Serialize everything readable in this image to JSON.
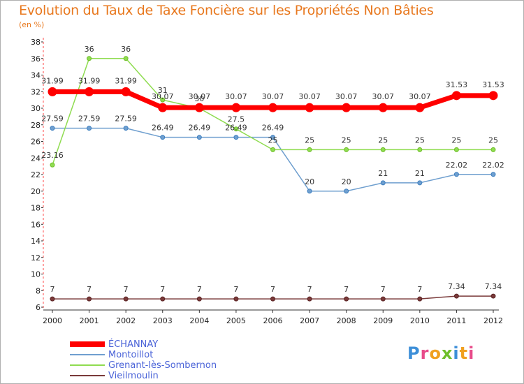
{
  "header": {
    "title": "Evolution du Taux de Taxe Foncière sur les Propriétés Non Bâties",
    "subtitle": "(en %)"
  },
  "chart_data": {
    "type": "line",
    "title": "Evolution du Taux de Taxe Foncière sur les Propriétés Non Bâties",
    "ylabel": "(en %)",
    "xlabel": "",
    "categories": [
      "2000",
      "2001",
      "2002",
      "2003",
      "2004",
      "2005",
      "2006",
      "2007",
      "2008",
      "2009",
      "2010",
      "2011",
      "2012"
    ],
    "ylim": [
      6,
      38
    ],
    "yticks": [
      6,
      8,
      10,
      12,
      14,
      16,
      18,
      20,
      22,
      24,
      26,
      28,
      30,
      32,
      34,
      36,
      38
    ],
    "grid": false,
    "legend_position": "bottom-left",
    "series": [
      {
        "name": "ÉCHANNAY",
        "color": "#ff0000",
        "values": [
          31.99,
          31.99,
          31.99,
          30.07,
          30.07,
          30.07,
          30.07,
          30.07,
          30.07,
          30.07,
          30.07,
          31.53,
          31.53
        ],
        "labels": [
          "31.99",
          "31.99",
          "31.99",
          "30.07",
          "30.07",
          "30.07",
          "30.07",
          "30.07",
          "30.07",
          "30.07",
          "30.07",
          "31.53",
          "31.53"
        ]
      },
      {
        "name": "Montoillot",
        "color": "#6f9fcf",
        "values": [
          27.59,
          27.59,
          27.59,
          26.49,
          26.49,
          26.49,
          26.49,
          20,
          20,
          21,
          21,
          22.02,
          22.02
        ],
        "labels": [
          "27.59",
          "27.59",
          "27.59",
          "26.49",
          "26.49",
          "26.49",
          "26.49",
          "20",
          "20",
          "21",
          "21",
          "22.02",
          "22.02"
        ]
      },
      {
        "name": "Grenant-lès-Sombernon",
        "color": "#8fdc50",
        "values": [
          23.16,
          36,
          36,
          31,
          30,
          27.5,
          25,
          25,
          25,
          25,
          25,
          25,
          25
        ],
        "labels": [
          "23.16",
          "36",
          "36",
          "31",
          "30",
          "27.5",
          "25",
          "25",
          "25",
          "25",
          "25",
          "25",
          "25"
        ]
      },
      {
        "name": "Vieilmoulin",
        "color": "#7a3a3a",
        "values": [
          7,
          7,
          7,
          7,
          7,
          7,
          7,
          7,
          7,
          7,
          7,
          7.34,
          7.34
        ],
        "labels": [
          "7",
          "7",
          "7",
          "7",
          "7",
          "7",
          "7",
          "7",
          "7",
          "7",
          "7",
          "7.34",
          "7.34"
        ]
      }
    ]
  },
  "logo": {
    "text": "Proxiti"
  }
}
